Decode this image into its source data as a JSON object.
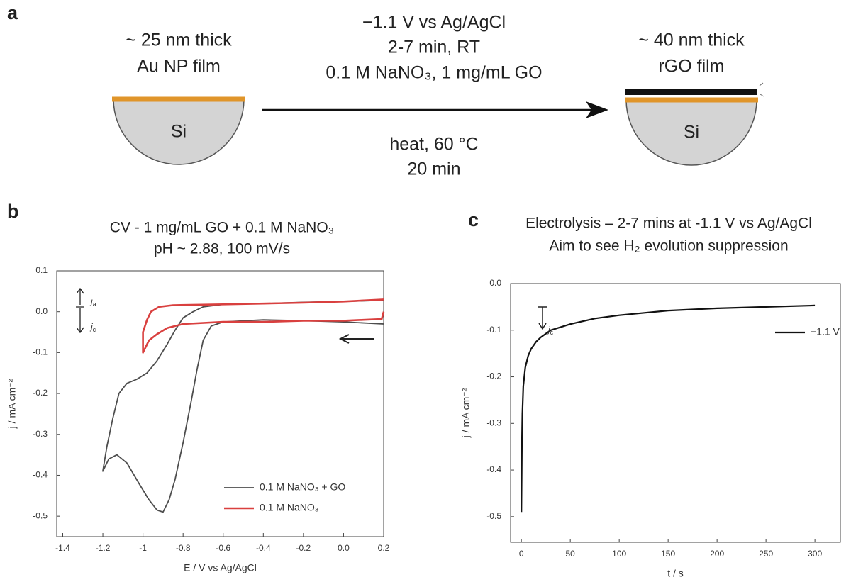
{
  "schematic": {
    "label": "a",
    "left_film": [
      "~ 25 nm thick",
      "Au NP film"
    ],
    "right_film": [
      "~ 40 nm thick",
      "rGO film"
    ],
    "substrate_left": "Si",
    "substrate_right": "Si",
    "conditions_top": [
      "−1.1 V vs Ag/AgCl",
      "2-7 min, RT",
      "0.1 M NaNO₃, 1 mg/mL GO"
    ],
    "conditions_bottom": [
      "heat, 60 °C",
      "20 min"
    ]
  },
  "chart_data": [
    {
      "type": "line",
      "label": "b",
      "title": [
        "CV - 1 mg/mL GO + 0.1 M NaNO₃",
        "pH ~ 2.88, 100 mV/s"
      ],
      "x_label": "E / V vs Ag/AgCl",
      "y_label": "j / mA cm⁻²",
      "xlim": [
        -1.43,
        0.2
      ],
      "ylim": [
        -0.55,
        0.1
      ],
      "xticks": [
        -1.4,
        -1.2,
        -1.0,
        -0.8,
        -0.6,
        -0.4,
        -0.2,
        {
          "value": 0,
          "label": "0.0"
        },
        0.2
      ],
      "yticks": [
        0.1,
        {
          "value": 0,
          "label": "0.0"
        },
        -0.1,
        -0.2,
        -0.3,
        -0.4,
        -0.5
      ],
      "legend": "lower right",
      "annotations": [
        {
          "text": "j",
          "sub": "a"
        },
        {
          "text": "j",
          "sub": "c"
        }
      ],
      "series": [
        {
          "name": "0.1 M NaNO₃ + GO",
          "color": "#4d4d4d",
          "x": [
            0.2,
            0.0,
            -0.2,
            -0.4,
            -0.6,
            -0.66,
            -0.7,
            -0.73,
            -0.76,
            -0.8,
            -0.84,
            -0.87,
            -0.9,
            -0.93,
            -0.97,
            -1.02,
            -1.08,
            -1.13,
            -1.17,
            -1.2,
            -1.18,
            -1.15,
            -1.12,
            -1.08,
            -1.03,
            -0.98,
            -0.93,
            -0.88,
            -0.84,
            -0.8,
            -0.75,
            -0.7,
            -0.6,
            -0.4,
            -0.2,
            0.0,
            0.2
          ],
          "values": [
            -0.03,
            -0.025,
            -0.022,
            -0.02,
            -0.025,
            -0.035,
            -0.07,
            -0.14,
            -0.22,
            -0.32,
            -0.41,
            -0.46,
            -0.49,
            -0.485,
            -0.46,
            -0.42,
            -0.37,
            -0.35,
            -0.36,
            -0.39,
            -0.33,
            -0.26,
            -0.2,
            -0.175,
            -0.165,
            -0.15,
            -0.12,
            -0.08,
            -0.045,
            -0.015,
            0.0,
            0.012,
            0.018,
            0.02,
            0.023,
            0.025,
            0.028
          ]
        },
        {
          "name": "0.1 M NaNO₃",
          "color": "#d9403f",
          "x": [
            0.2,
            0.19,
            0.1,
            0.0,
            -0.2,
            -0.4,
            -0.6,
            -0.8,
            -0.88,
            -0.93,
            -0.97,
            -1.0,
            -1.0,
            -0.98,
            -0.96,
            -0.92,
            -0.85,
            -0.6,
            -0.4,
            -0.2,
            0.0,
            0.2
          ],
          "values": [
            0.0,
            -0.018,
            -0.02,
            -0.022,
            -0.022,
            -0.025,
            -0.025,
            -0.03,
            -0.04,
            -0.055,
            -0.07,
            -0.1,
            -0.05,
            -0.02,
            0.0,
            0.012,
            0.016,
            0.018,
            0.02,
            0.022,
            0.025,
            0.03
          ]
        }
      ]
    },
    {
      "type": "line",
      "label": "c",
      "title": [
        "Electrolysis – 2-7 mins at -1.1 V vs Ag/AgCl",
        "Aim to see H₂ evolution suppression"
      ],
      "x_label": "t / s",
      "y_label": "j / mA cm⁻²",
      "xlim": [
        -11,
        326
      ],
      "ylim": [
        -0.555,
        0.0
      ],
      "xticks": [
        0,
        50,
        100,
        150,
        200,
        250,
        300
      ],
      "yticks": [
        {
          "value": 0,
          "label": "0.0"
        },
        -0.1,
        -0.2,
        -0.3,
        -0.4,
        -0.5
      ],
      "legend": "upper right",
      "annotations": [
        {
          "text": "j",
          "sub": "c"
        }
      ],
      "series": [
        {
          "name": "−1.1 V",
          "color": "#111111",
          "x": [
            0,
            0.5,
            1,
            2,
            4,
            7,
            10,
            15,
            20,
            30,
            50,
            75,
            100,
            150,
            200,
            250,
            300
          ],
          "values": [
            -0.49,
            -0.35,
            -0.28,
            -0.22,
            -0.18,
            -0.155,
            -0.14,
            -0.125,
            -0.115,
            -0.1,
            -0.087,
            -0.075,
            -0.068,
            -0.058,
            -0.053,
            -0.05,
            -0.047
          ]
        }
      ]
    }
  ]
}
